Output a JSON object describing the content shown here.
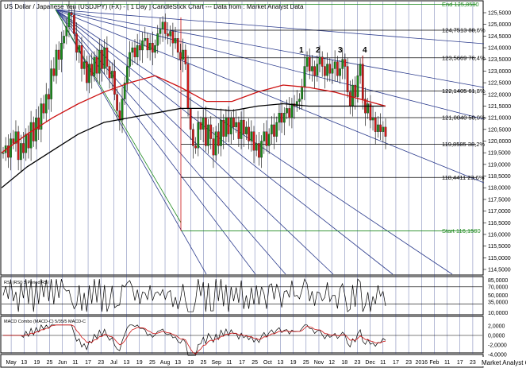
{
  "chart_data": {
    "type": "candlestick",
    "title": "US Dollar / Japanese Yen (USDJPY) (FX) -  [ 1 Day ] CandleStick Chart --- Data from : Market Analyst Data",
    "watermark": "Market Analyst 6",
    "y_axis": {
      "min": 114.0,
      "max": 125.7,
      "ticks": [
        "125,5000",
        "125,0000",
        "124,5000",
        "124,0000",
        "123,5000",
        "123,0000",
        "122,5000",
        "122,0000",
        "121,5000",
        "121,0000",
        "120,5000",
        "120,0000",
        "119,5000",
        "119,0000",
        "118,5000",
        "118,0000",
        "117,5000",
        "117,0000",
        "116,5000",
        "116,0000",
        "115,5000",
        "115,0000",
        "114,5000"
      ],
      "tick_values": [
        125.5,
        125.0,
        124.5,
        124.0,
        123.5,
        123.0,
        122.5,
        122.0,
        121.5,
        121.0,
        120.5,
        120.0,
        119.5,
        119.0,
        118.5,
        118.0,
        117.5,
        117.0,
        116.5,
        116.0,
        115.5,
        115.0,
        114.5
      ]
    },
    "fib_levels": [
      {
        "label": "End 125,8580",
        "value": 125.858
      },
      {
        "label": "124,7513 88,6%",
        "value": 124.7513
      },
      {
        "label": "123,5669 76,4%",
        "value": 123.5669
      },
      {
        "label": "122,1405 61,8%",
        "value": 122.1405
      },
      {
        "label": "121,0040 50,0%",
        "value": 121.004
      },
      {
        "label": "119,8585 38,2%",
        "value": 119.8585
      },
      {
        "label": "118,4411 23,6%",
        "value": 118.4411
      },
      {
        "label": "Start 116,1500",
        "value": 116.15
      }
    ],
    "wave_labels": [
      "1",
      "2",
      "3",
      "4"
    ],
    "rsi": {
      "title": "RSI (RSI) 5 Period RSI",
      "ticks": [
        "85,0000",
        "70,0000",
        "50,0000",
        "35,0000",
        "10,0000"
      ],
      "tick_values": [
        85,
        70,
        50,
        35,
        10
      ],
      "bands": [
        70,
        30
      ]
    },
    "macd": {
      "title": "MACD Combo (MACD-C) 5/35/5 MACD-C",
      "ticks": [
        "2,0000",
        "0,0000",
        "-2,0000",
        "-4,0000"
      ],
      "tick_values": [
        2.0,
        0.0,
        -2.0,
        -4.0
      ]
    },
    "x_axis": {
      "labels": [
        "May",
        "13",
        "19",
        "25",
        "Jun",
        "11",
        "17",
        "23",
        "Jul",
        "13",
        "19",
        "25",
        "Aug",
        "13",
        "19",
        "25",
        "Sep",
        "11",
        "17",
        "25",
        "Oct",
        "13",
        "19",
        "25",
        "Nov",
        "12",
        "18",
        "23",
        "Dec",
        "11",
        "17",
        "23",
        "2016",
        "Feb",
        "11",
        "17",
        "23"
      ]
    },
    "series": [
      {
        "values": [
          119.5,
          119.8,
          119.3,
          120.1,
          119.9,
          120.4,
          119.2,
          119.9,
          119.5,
          120.3,
          119.7,
          120.8,
          120.0,
          121.0,
          120.5,
          121.6,
          121.2,
          122.0,
          121.8,
          123.1,
          122.8,
          123.9,
          123.5,
          124.2,
          124.5,
          124.9,
          125.5,
          125.4,
          124.6,
          123.8,
          124.1,
          123.1,
          123.4,
          122.5,
          123.3,
          122.8,
          123.6,
          122.9,
          123.9,
          123.1,
          124.0,
          123.2,
          122.7,
          123.0,
          122.0,
          121.3,
          120.9,
          121.8,
          122.5,
          123.2,
          123.8,
          124.0,
          123.6,
          124.1,
          123.9,
          124.3,
          124.4,
          123.9,
          124.2,
          123.8,
          124.1,
          124.6,
          124.8,
          125.1,
          124.6,
          124.5,
          124.7,
          124.2,
          124.4,
          123.8,
          123.5,
          123.9,
          123.3,
          121.4,
          120.5,
          119.8,
          119.7,
          120.8,
          120.5,
          121.0,
          119.8,
          120.7,
          120.1,
          119.4,
          120.4,
          119.8,
          120.9,
          120.2,
          121.0,
          120.3,
          121.0,
          120.6,
          120.8,
          120.1,
          120.9,
          120.3,
          120.6,
          120.0,
          120.4,
          119.6,
          119.9,
          119.3,
          120.0,
          120.4,
          119.8,
          120.3,
          120.7,
          120.2,
          120.8,
          121.2,
          120.8,
          121.2,
          121.4,
          121.0,
          121.6,
          121.5,
          121.7,
          121.8,
          122.3,
          123.2,
          123.6,
          123.0,
          123.2,
          122.8,
          123.3,
          123.6,
          123.2,
          122.8,
          123.3,
          122.9,
          123.1,
          123.4,
          122.8,
          123.1,
          123.5,
          123.2,
          122.1,
          121.5,
          122.4,
          121.9,
          122.8,
          123.3,
          121.8,
          121.2,
          121.6,
          120.9,
          121.0,
          120.4,
          120.7,
          120.4,
          120.6,
          120.2
        ]
      },
      {
        "name": "MA-long",
        "values": [
          118.0,
          118.9,
          119.6,
          120.3,
          120.8,
          121.0,
          121.2,
          121.4,
          121.4,
          121.3,
          121.5,
          121.6,
          121.5,
          121.5,
          121.5,
          121.5
        ]
      },
      {
        "name": "MA-short",
        "values": [
          119.5,
          120.3,
          121.0,
          121.6,
          122.1,
          122.5,
          122.8,
          122.3,
          121.7,
          121.7,
          122.1,
          122.4,
          122.3,
          122.1,
          121.8,
          121.5
        ]
      }
    ]
  }
}
